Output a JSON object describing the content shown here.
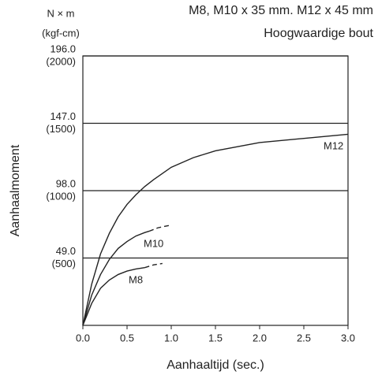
{
  "chart_data": {
    "type": "line",
    "title": "M8, M10 x 35 mm. M12 x 45 mm",
    "subtitle": "Hoogwaardige bout",
    "xlabel": "Aanhaaltijd (sec.)",
    "ylabel": "Aanhaalmoment",
    "yunit": "N × m",
    "y2unit": "(kgf-cm)",
    "xlim": [
      0,
      3.0
    ],
    "xticks": [
      {
        "value": 0,
        "label": "0.0"
      },
      0.5,
      {
        "value": 1,
        "label": "1.0"
      },
      1.5,
      {
        "value": 2,
        "label": "2.0"
      },
      2.5,
      {
        "value": 3,
        "label": "3.0"
      }
    ],
    "ylim": [
      0,
      196
    ],
    "yticks": [
      {
        "value": 49,
        "label": "49.0"
      },
      {
        "value": 98,
        "label": "98.0"
      },
      {
        "value": 147,
        "label": "147.0"
      },
      {
        "value": 196,
        "label": "196.0"
      }
    ],
    "y2lim": [
      0,
      2000
    ],
    "y2ticks": [
      {
        "value": 500,
        "label": "(500)"
      },
      {
        "value": 1000,
        "label": "(1000)"
      },
      {
        "value": 1500,
        "label": "(1500)"
      },
      {
        "value": 2000,
        "label": "(2000)"
      }
    ],
    "grid": true,
    "color": "#222222",
    "series": [
      {
        "name": "M12",
        "x": [
          0,
          0.1,
          0.2,
          0.3,
          0.4,
          0.5,
          0.6,
          0.7,
          0.8,
          1.0,
          1.25,
          1.5,
          2.0,
          2.5,
          3.0
        ],
        "values": [
          0,
          30,
          52,
          67,
          79,
          88,
          95,
          101,
          106,
          115,
          122,
          127,
          133,
          136,
          139
        ],
        "dashed_values": [
          null,
          null,
          null,
          null,
          null,
          null,
          null,
          null,
          null,
          null,
          null,
          null,
          null,
          null,
          null
        ]
      },
      {
        "name": "M10",
        "x": [
          0,
          0.1,
          0.2,
          0.3,
          0.4,
          0.5,
          0.6,
          0.7,
          0.75,
          0.85,
          1.0
        ],
        "values": [
          0,
          22,
          37,
          48,
          56,
          61,
          65,
          67.5,
          68.5,
          null,
          null
        ],
        "dashed_values": [
          null,
          null,
          null,
          null,
          null,
          null,
          null,
          null,
          68.5,
          71,
          73
        ]
      },
      {
        "name": "M8",
        "x": [
          0,
          0.1,
          0.2,
          0.3,
          0.4,
          0.5,
          0.6,
          0.7,
          0.8,
          0.9
        ],
        "values": [
          0,
          16,
          27,
          33,
          37,
          39.5,
          41,
          42,
          null,
          null
        ],
        "dashed_values": [
          null,
          null,
          null,
          null,
          null,
          null,
          null,
          42,
          44,
          45
        ]
      }
    ]
  }
}
